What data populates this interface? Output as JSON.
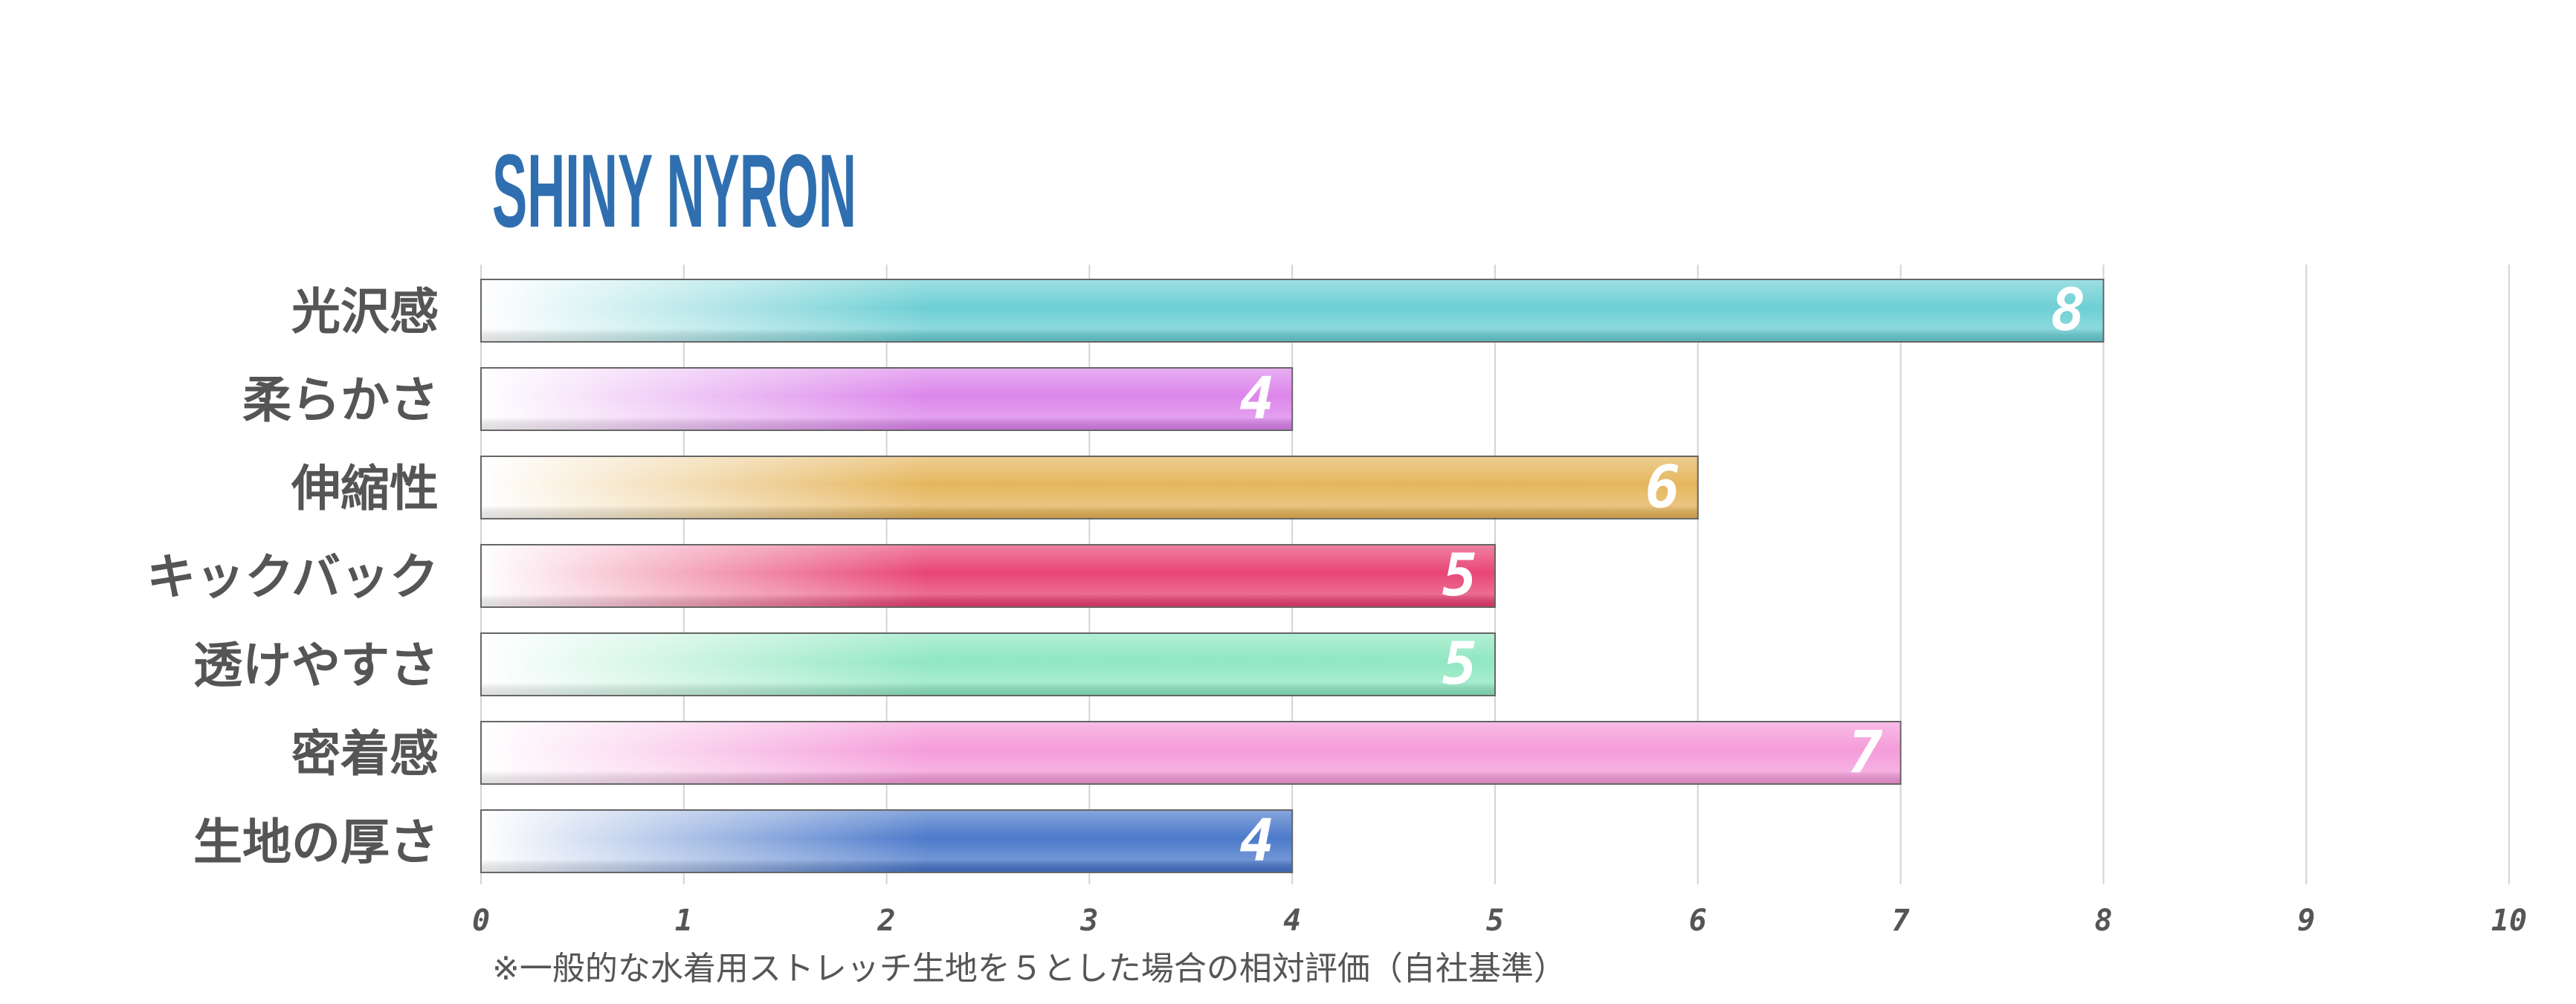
{
  "chart_data": {
    "type": "bar",
    "orientation": "horizontal",
    "title": "SHINY NYRON",
    "categories": [
      "光沢感",
      "柔らかさ",
      "伸縮性",
      "キックバック",
      "透けやすさ",
      "密着感",
      "生地の厚さ"
    ],
    "values": [
      8,
      4,
      6,
      5,
      5,
      7,
      4
    ],
    "colors": [
      "#66cdd2",
      "#da80ea",
      "#e4b255",
      "#e73b6e",
      "#8ae6be",
      "#f497d8",
      "#4373c8"
    ],
    "xlim": [
      0,
      10
    ],
    "xticks": [
      "0",
      "1",
      "2",
      "3",
      "4",
      "5",
      "6",
      "7",
      "8",
      "9",
      "10"
    ],
    "grid": true,
    "legend": "none",
    "footnote": "※一般的な水着用ストレッチ生地を５とした場合の相対評価（自社基準）"
  }
}
